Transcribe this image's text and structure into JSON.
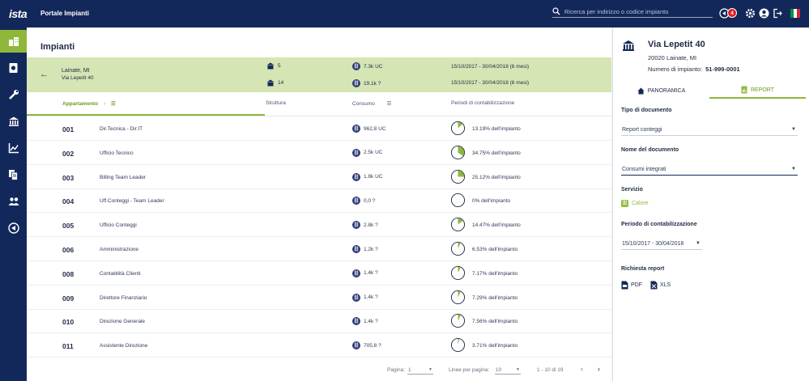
{
  "topbar": {
    "logo": "ista",
    "app_title": "Portale Impianti",
    "search_placeholder": "Ricerca per indirizzo o codice impianto",
    "notification_count": "4",
    "icons": [
      "search-icon",
      "notification-icon",
      "settings-icon",
      "user-icon",
      "logout-icon",
      "italy-flag-icon"
    ]
  },
  "leftnav": {
    "items": [
      "buildings-icon",
      "report-icon",
      "wrench-icon",
      "bank-icon",
      "chart-icon",
      "documents-icon",
      "users-icon",
      "exit-icon"
    ],
    "active": "buildings-icon"
  },
  "main": {
    "title": "Impianti",
    "selected": {
      "city": "Lainate, MI",
      "street": "Via Lepetit 40",
      "line1": {
        "count": "5",
        "consumo": "7.3k UC",
        "periodo": "15/10/2017 - 30/04/2018 (6 mesi)"
      },
      "line2": {
        "count": "14",
        "consumo": "19.1k ?",
        "periodo": "15/10/2017 - 30/04/2018 (6 mesi)"
      }
    },
    "columns": {
      "appartamento": "Appartamento",
      "struttura": "Struttura",
      "consumo": "Consumo",
      "periodi": "Periodi di contabilizzazione"
    },
    "rows": [
      {
        "app": "001",
        "struttura": "Dir.Tecnica - Dir.IT",
        "consumo": "962,8 UC",
        "pct_text": "13.19% dell'impianto",
        "pct": 13.19
      },
      {
        "app": "002",
        "struttura": "Ufficio Tecnico",
        "consumo": "2.5k UC",
        "pct_text": "34.75% dell'impianto",
        "pct": 34.75
      },
      {
        "app": "003",
        "struttura": "Billing Team Leader",
        "consumo": "1.8k UC",
        "pct_text": "25.12% dell'impianto",
        "pct": 25.12
      },
      {
        "app": "004",
        "struttura": "Uff.Conteggi - Team Leader",
        "consumo": "0,0 ?",
        "pct_text": "0% dell'impianto",
        "pct": 0
      },
      {
        "app": "005",
        "struttura": "Ufficio Conteggi",
        "consumo": "2.8k ?",
        "pct_text": "14.47% dell'impianto",
        "pct": 14.47
      },
      {
        "app": "006",
        "struttura": "Amministrazione",
        "consumo": "1.2k ?",
        "pct_text": "6.53% dell'impianto",
        "pct": 6.53
      },
      {
        "app": "008",
        "struttura": "Contabilità Clienti",
        "consumo": "1.4k ?",
        "pct_text": "7.17% dell'impianto",
        "pct": 7.17
      },
      {
        "app": "009",
        "struttura": "Direttore Finanziario",
        "consumo": "1.4k ?",
        "pct_text": "7.29% dell'impianto",
        "pct": 7.29
      },
      {
        "app": "010",
        "struttura": "Direzione Generale",
        "consumo": "1.4k ?",
        "pct_text": "7.56% dell'impianto",
        "pct": 7.56
      },
      {
        "app": "011",
        "struttura": "Assistente Direzione",
        "consumo": "705,8 ?",
        "pct_text": "3.71% dell'impianto",
        "pct": 3.71
      }
    ],
    "pager": {
      "page_label": "Pagina:",
      "page_value": "1",
      "rows_label": "Linee per pagina:",
      "rows_value": "10",
      "range": "1 - 10 di 19"
    }
  },
  "right_panel": {
    "title": "Via Lepetit 40",
    "address": "20020 Lainate, MI",
    "impianto_label": "Numero di impianto:",
    "impianto_value": "51-999-0001",
    "tabs": [
      "PANORAMICA",
      "REPORT"
    ],
    "active_tab": "REPORT",
    "tipo_label": "Tipo di documento",
    "tipo_value": "Report conteggi",
    "nome_label": "Nome del documento",
    "nome_value": "Consumi integrati",
    "servizio_label": "Servizio",
    "servizio_value": "Calore",
    "periodo_label": "Periodo di contabilizzazione",
    "periodo_value": "15/10/2017 - 30/04/2018",
    "richiesta_label": "Richiesta report",
    "pdf": "PDF",
    "xls": "XLS"
  },
  "colors": {
    "navy": "#13285a",
    "green": "#8fb83a",
    "band": "#d5e5b3",
    "badge": "#e11b22"
  }
}
